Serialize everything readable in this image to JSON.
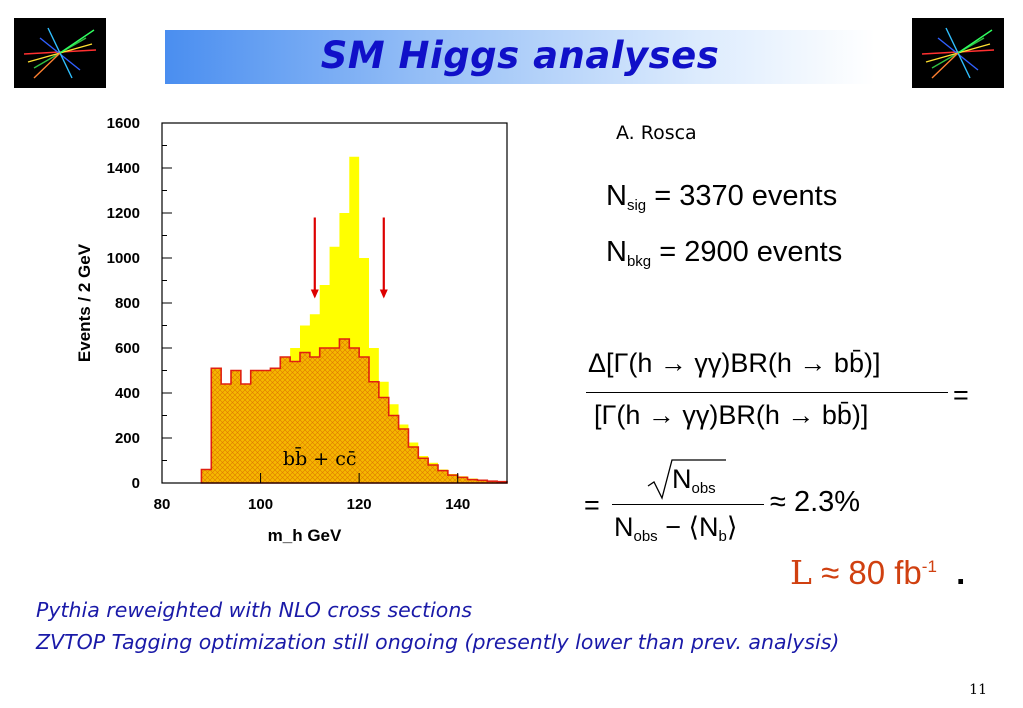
{
  "slide": {
    "title": "SM Higgs analyses",
    "author": "A. Rosca",
    "page_number": "11"
  },
  "equations": {
    "n_sig_symbol": "N",
    "n_sig_sub": "sig",
    "n_sig_value": "= 3370  events",
    "n_bkg_symbol": "N",
    "n_bkg_sub": "bkg",
    "n_bkg_value": "= 2900  events",
    "ratio_numerator": "Δ[Γ(h → γγ)BR(h → bb̄)]",
    "ratio_denominator": "[Γ(h → γγ)BR(h → bb̄)]",
    "ratio_equals": "=",
    "estimate_equals": "=",
    "sqrt_n_obs": "N",
    "obs_sub": "obs",
    "denominator_text": "N",
    "minus": "−",
    "n_b": "N",
    "b_sub": "b",
    "estimate_result": "≈ 2.3%",
    "lumi_symbol": "L",
    "lumi_value": "≈ 80 fb",
    "lumi_exp": "-1",
    "lumi_dot": "."
  },
  "notes": {
    "line1": "Pythia reweighted with NLO cross sections",
    "line2": "ZVTOP Tagging optimization still ongoing (presently lower than prev. analysis)"
  },
  "colors": {
    "title": "#1010c8",
    "signal_fill": "#ffff00",
    "background_fill": "#f5b800",
    "outline": "#e02010",
    "arrows": "#dd0000",
    "lumi_text": "#d04010"
  },
  "chart_data": {
    "type": "histogram",
    "xlabel": "m_h GeV",
    "ylabel": "Events / 2 GeV",
    "xlim": [
      80,
      150
    ],
    "ylim": [
      0,
      1600
    ],
    "x_ticks": [
      "80",
      "100",
      "120",
      "140"
    ],
    "y_ticks": [
      "0",
      "200",
      "400",
      "600",
      "800",
      "1000",
      "1200",
      "1400",
      "1600"
    ],
    "bin_width": 2,
    "bin_edges_start": 88,
    "series": [
      {
        "values": [
          60,
          510,
          440,
          500,
          440,
          500,
          500,
          510,
          560,
          600,
          700,
          750,
          880,
          1050,
          1200,
          1450,
          1000,
          600,
          450,
          350,
          260,
          180,
          120,
          90,
          60,
          40,
          30,
          20,
          15,
          10,
          8
        ]
      },
      {
        "name": "bb̄ + cc̄",
        "values": [
          60,
          510,
          440,
          500,
          440,
          500,
          500,
          510,
          560,
          540,
          580,
          560,
          600,
          600,
          640,
          600,
          560,
          450,
          380,
          300,
          240,
          160,
          110,
          80,
          55,
          35,
          25,
          15,
          12,
          8,
          6
        ]
      }
    ],
    "arrows_at_x": [
      111,
      125
    ]
  }
}
